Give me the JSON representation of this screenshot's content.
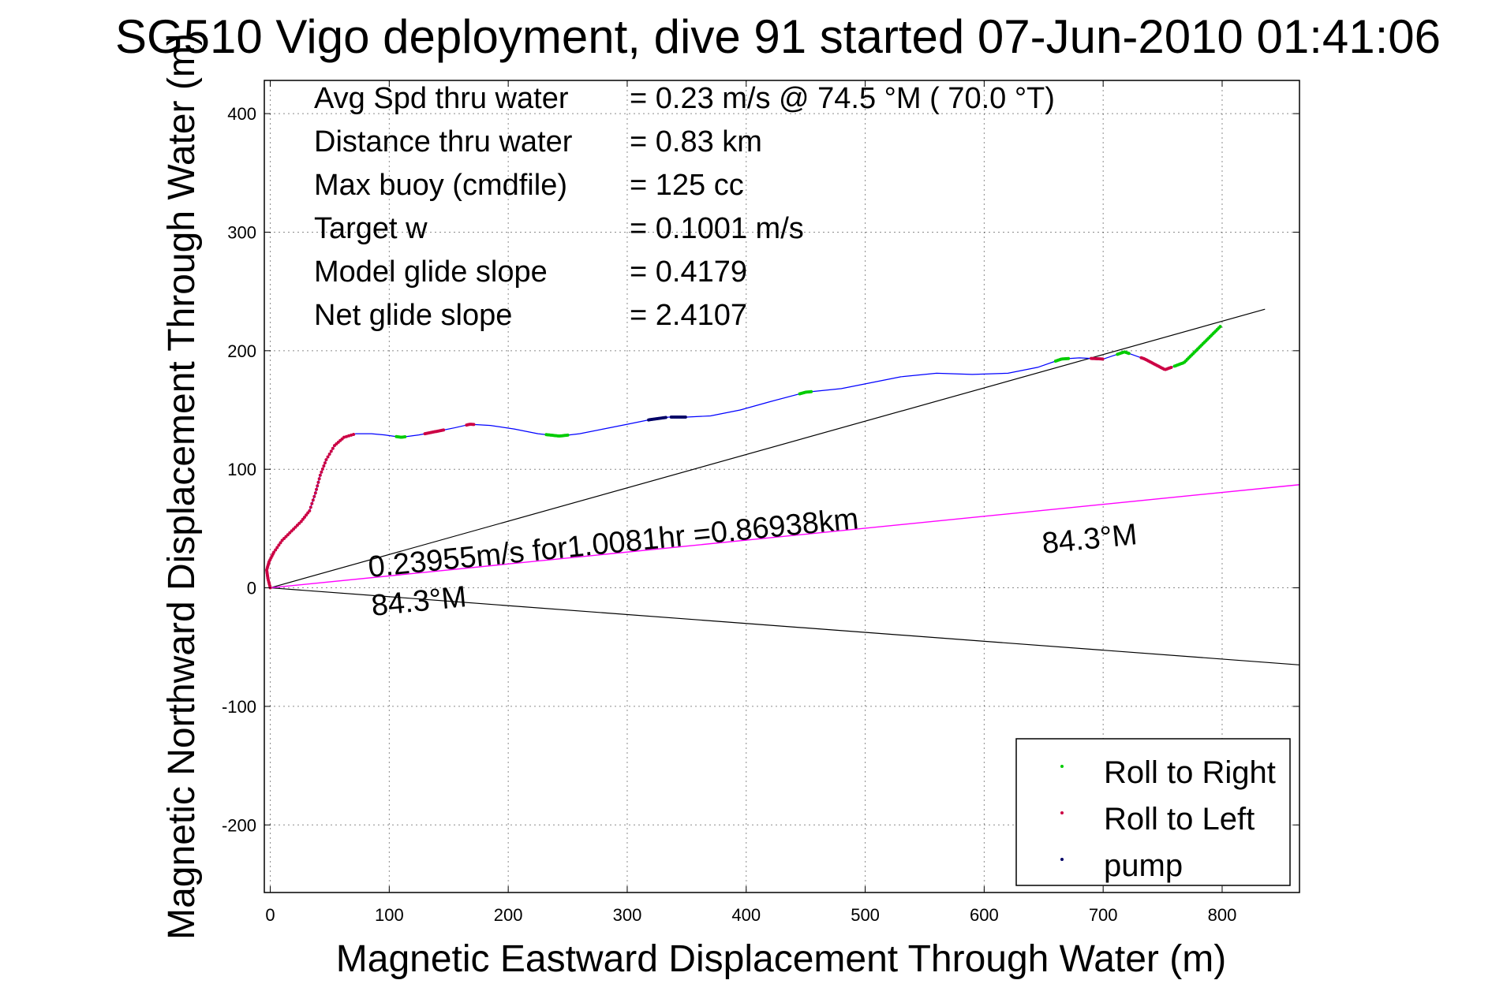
{
  "chart_data": {
    "type": "line",
    "title": "SG510 Vigo deployment, dive 91 started 07-Jun-2010 01:41:06",
    "xlabel": "Magnetic Eastward Displacement Through Water (m)",
    "ylabel": "Magnetic Northward Displacement Through Water (m)",
    "xlim": [
      -5,
      865
    ],
    "ylim": [
      -257,
      428
    ],
    "xticks": [
      0,
      100,
      200,
      300,
      400,
      500,
      600,
      700,
      800
    ],
    "yticks": [
      -200,
      -100,
      0,
      100,
      200,
      300,
      400
    ],
    "grid": true,
    "legend_position": "bottom-right",
    "stats": [
      {
        "label": "Avg Spd thru water",
        "value": "=  0.23 m/s @  74.5 °M ( 70.0 °T)"
      },
      {
        "label": "Distance thru water",
        "value": "=  0.83 km"
      },
      {
        "label": "Max buoy (cmdfile)",
        "value": "= 125 cc"
      },
      {
        "label": "Target w",
        "value": "= 0.1001 m/s"
      },
      {
        "label": "Model glide slope",
        "value": "= 0.4179"
      },
      {
        "label": "Net glide slope",
        "value": "= 2.4107"
      }
    ],
    "annotations": {
      "current": "0.23955m/s for1.0081hr =0.86938km",
      "heading_upper": "84.3°M",
      "heading_lower": "84.3°M"
    },
    "legend": [
      "Roll to Right",
      "Roll to Left",
      "pump"
    ],
    "colors": {
      "track": "#0000ff",
      "roll_right": "#00cc00",
      "roll_left": "#cc0044",
      "pump": "#000066",
      "current_line": "#ff00ff",
      "guide_line": "#000000"
    },
    "track": [
      [
        0,
        0
      ],
      [
        -2,
        8
      ],
      [
        -3,
        15
      ],
      [
        -1,
        22
      ],
      [
        3,
        30
      ],
      [
        10,
        40
      ],
      [
        18,
        48
      ],
      [
        26,
        56
      ],
      [
        33,
        65
      ],
      [
        38,
        80
      ],
      [
        42,
        95
      ],
      [
        47,
        108
      ],
      [
        54,
        120
      ],
      [
        62,
        127
      ],
      [
        72,
        130
      ],
      [
        85,
        130
      ],
      [
        96,
        129
      ],
      [
        110,
        127
      ],
      [
        125,
        129
      ],
      [
        140,
        132
      ],
      [
        155,
        135
      ],
      [
        168,
        138
      ],
      [
        185,
        137
      ],
      [
        205,
        134
      ],
      [
        225,
        130
      ],
      [
        243,
        128
      ],
      [
        260,
        130
      ],
      [
        280,
        134
      ],
      [
        300,
        138
      ],
      [
        320,
        142
      ],
      [
        335,
        144
      ],
      [
        350,
        144
      ],
      [
        370,
        145
      ],
      [
        395,
        150
      ],
      [
        420,
        157
      ],
      [
        450,
        165
      ],
      [
        480,
        168
      ],
      [
        505,
        173
      ],
      [
        530,
        178
      ],
      [
        560,
        181
      ],
      [
        590,
        180
      ],
      [
        620,
        181
      ],
      [
        645,
        186
      ],
      [
        665,
        193
      ],
      [
        680,
        194
      ],
      [
        700,
        193
      ],
      [
        718,
        199
      ],
      [
        735,
        193
      ],
      [
        752,
        184
      ],
      [
        768,
        190
      ],
      [
        783,
        205
      ],
      [
        799,
        221
      ]
    ],
    "segments": {
      "roll_right": [
        [
          106,
          114
        ],
        [
          232,
          250
        ],
        [
          445,
          455
        ],
        [
          660,
          672
        ],
        [
          712,
          722
        ],
        [
          760,
          800
        ]
      ],
      "roll_left": [
        [
          -3,
          70
        ],
        [
          130,
          146
        ],
        [
          165,
          172
        ],
        [
          690,
          700
        ],
        [
          732,
          758
        ]
      ],
      "pump": [
        [
          318,
          333
        ],
        [
          337,
          350
        ]
      ]
    },
    "guide_lines": [
      {
        "from": [
          0,
          0
        ],
        "to": [
          836,
          235
        ]
      },
      {
        "from": [
          0,
          0
        ],
        "to": [
          865,
          -65
        ]
      }
    ],
    "current_line": {
      "from": [
        0,
        0
      ],
      "to": [
        865,
        87
      ]
    }
  }
}
